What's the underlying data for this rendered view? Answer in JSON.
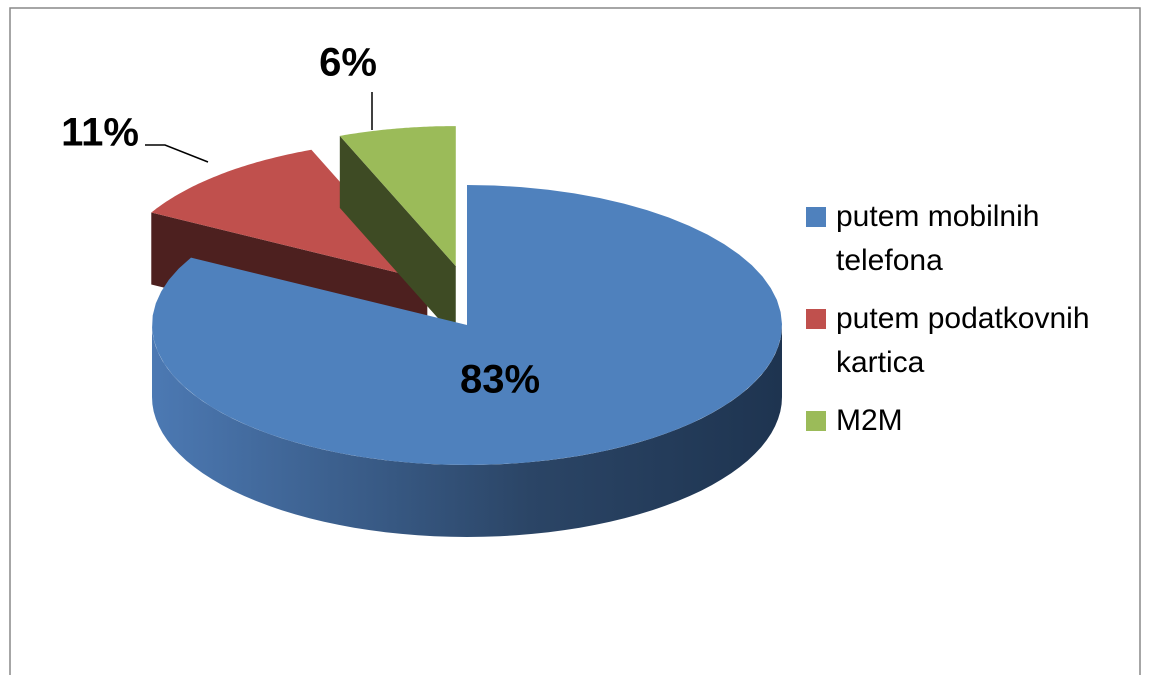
{
  "chart_data": {
    "type": "pie3d",
    "categories": [
      "putem mobilnih telefona",
      "putem podatkovnih kartica",
      "M2M"
    ],
    "values": [
      83,
      11,
      6
    ],
    "value_labels": [
      "83%",
      "11%",
      "6%"
    ],
    "colors": [
      "#4f81bd",
      "#c0504d",
      "#9bbb59"
    ],
    "legend": "right"
  }
}
